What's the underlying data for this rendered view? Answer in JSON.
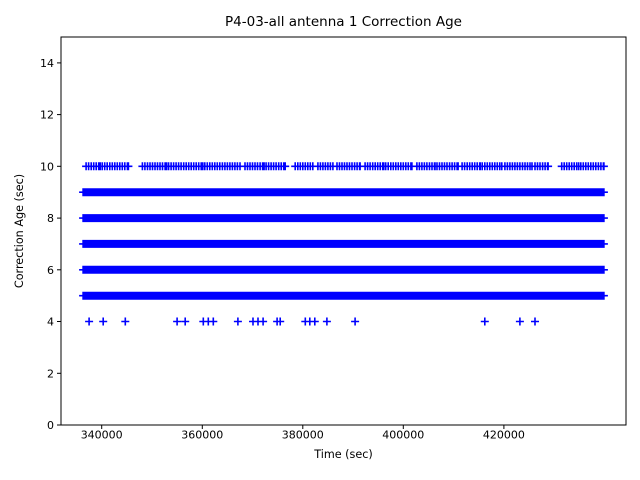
{
  "figure": {
    "background": "#ffffff",
    "frame_color": "#000000"
  },
  "chart_data": {
    "type": "scatter",
    "title": "P4-03-all antenna 1 Correction Age",
    "xlabel": "Time (sec)",
    "ylabel": "Correction Age (sec)",
    "xlim": [
      331900,
      444300
    ],
    "ylim": [
      0,
      15
    ],
    "xticks": [
      340000,
      360000,
      380000,
      400000,
      420000
    ],
    "yticks": [
      0,
      2,
      4,
      6,
      8,
      10,
      12,
      14
    ],
    "grid": false,
    "legend": "none",
    "marker": "plus",
    "marker_color": "#0000ff",
    "marker_size": 8,
    "series": [
      {
        "name": "age-10",
        "y": 10,
        "mode": "segments",
        "step": 500,
        "segments": [
          [
            336900,
            339700
          ],
          [
            340100,
            345300
          ],
          [
            348100,
            352900
          ],
          [
            353300,
            360100
          ],
          [
            360500,
            367500
          ],
          [
            368500,
            372300
          ],
          [
            372700,
            376500
          ],
          [
            378500,
            382000
          ],
          [
            383000,
            386000
          ],
          [
            386800,
            391400
          ],
          [
            392400,
            396100
          ],
          [
            396500,
            401700
          ],
          [
            402700,
            406300
          ],
          [
            406700,
            410900
          ],
          [
            411700,
            415300
          ],
          [
            415700,
            419600
          ],
          [
            420200,
            425600
          ],
          [
            426200,
            428800
          ],
          [
            431500,
            434900
          ],
          [
            435300,
            439900
          ]
        ]
      },
      {
        "name": "age-9",
        "y": 9,
        "mode": "segments",
        "step": 300,
        "segments": [
          [
            336300,
            439900
          ]
        ]
      },
      {
        "name": "age-8",
        "y": 8,
        "mode": "segments",
        "step": 300,
        "segments": [
          [
            336300,
            439900
          ]
        ]
      },
      {
        "name": "age-7",
        "y": 7,
        "mode": "segments",
        "step": 300,
        "segments": [
          [
            336300,
            439900
          ]
        ]
      },
      {
        "name": "age-6",
        "y": 6,
        "mode": "segments",
        "step": 300,
        "segments": [
          [
            336300,
            439900
          ]
        ]
      },
      {
        "name": "age-5",
        "y": 5,
        "mode": "segments",
        "step": 300,
        "segments": [
          [
            336300,
            439900
          ]
        ]
      },
      {
        "name": "age-4",
        "y": 4,
        "mode": "points",
        "x": [
          337500,
          340300,
          344700,
          355000,
          356600,
          360200,
          361200,
          362200,
          367100,
          370100,
          371100,
          372100,
          374900,
          375500,
          380500,
          381400,
          382400,
          384800,
          390400,
          416200,
          423200,
          426200
        ]
      }
    ]
  }
}
